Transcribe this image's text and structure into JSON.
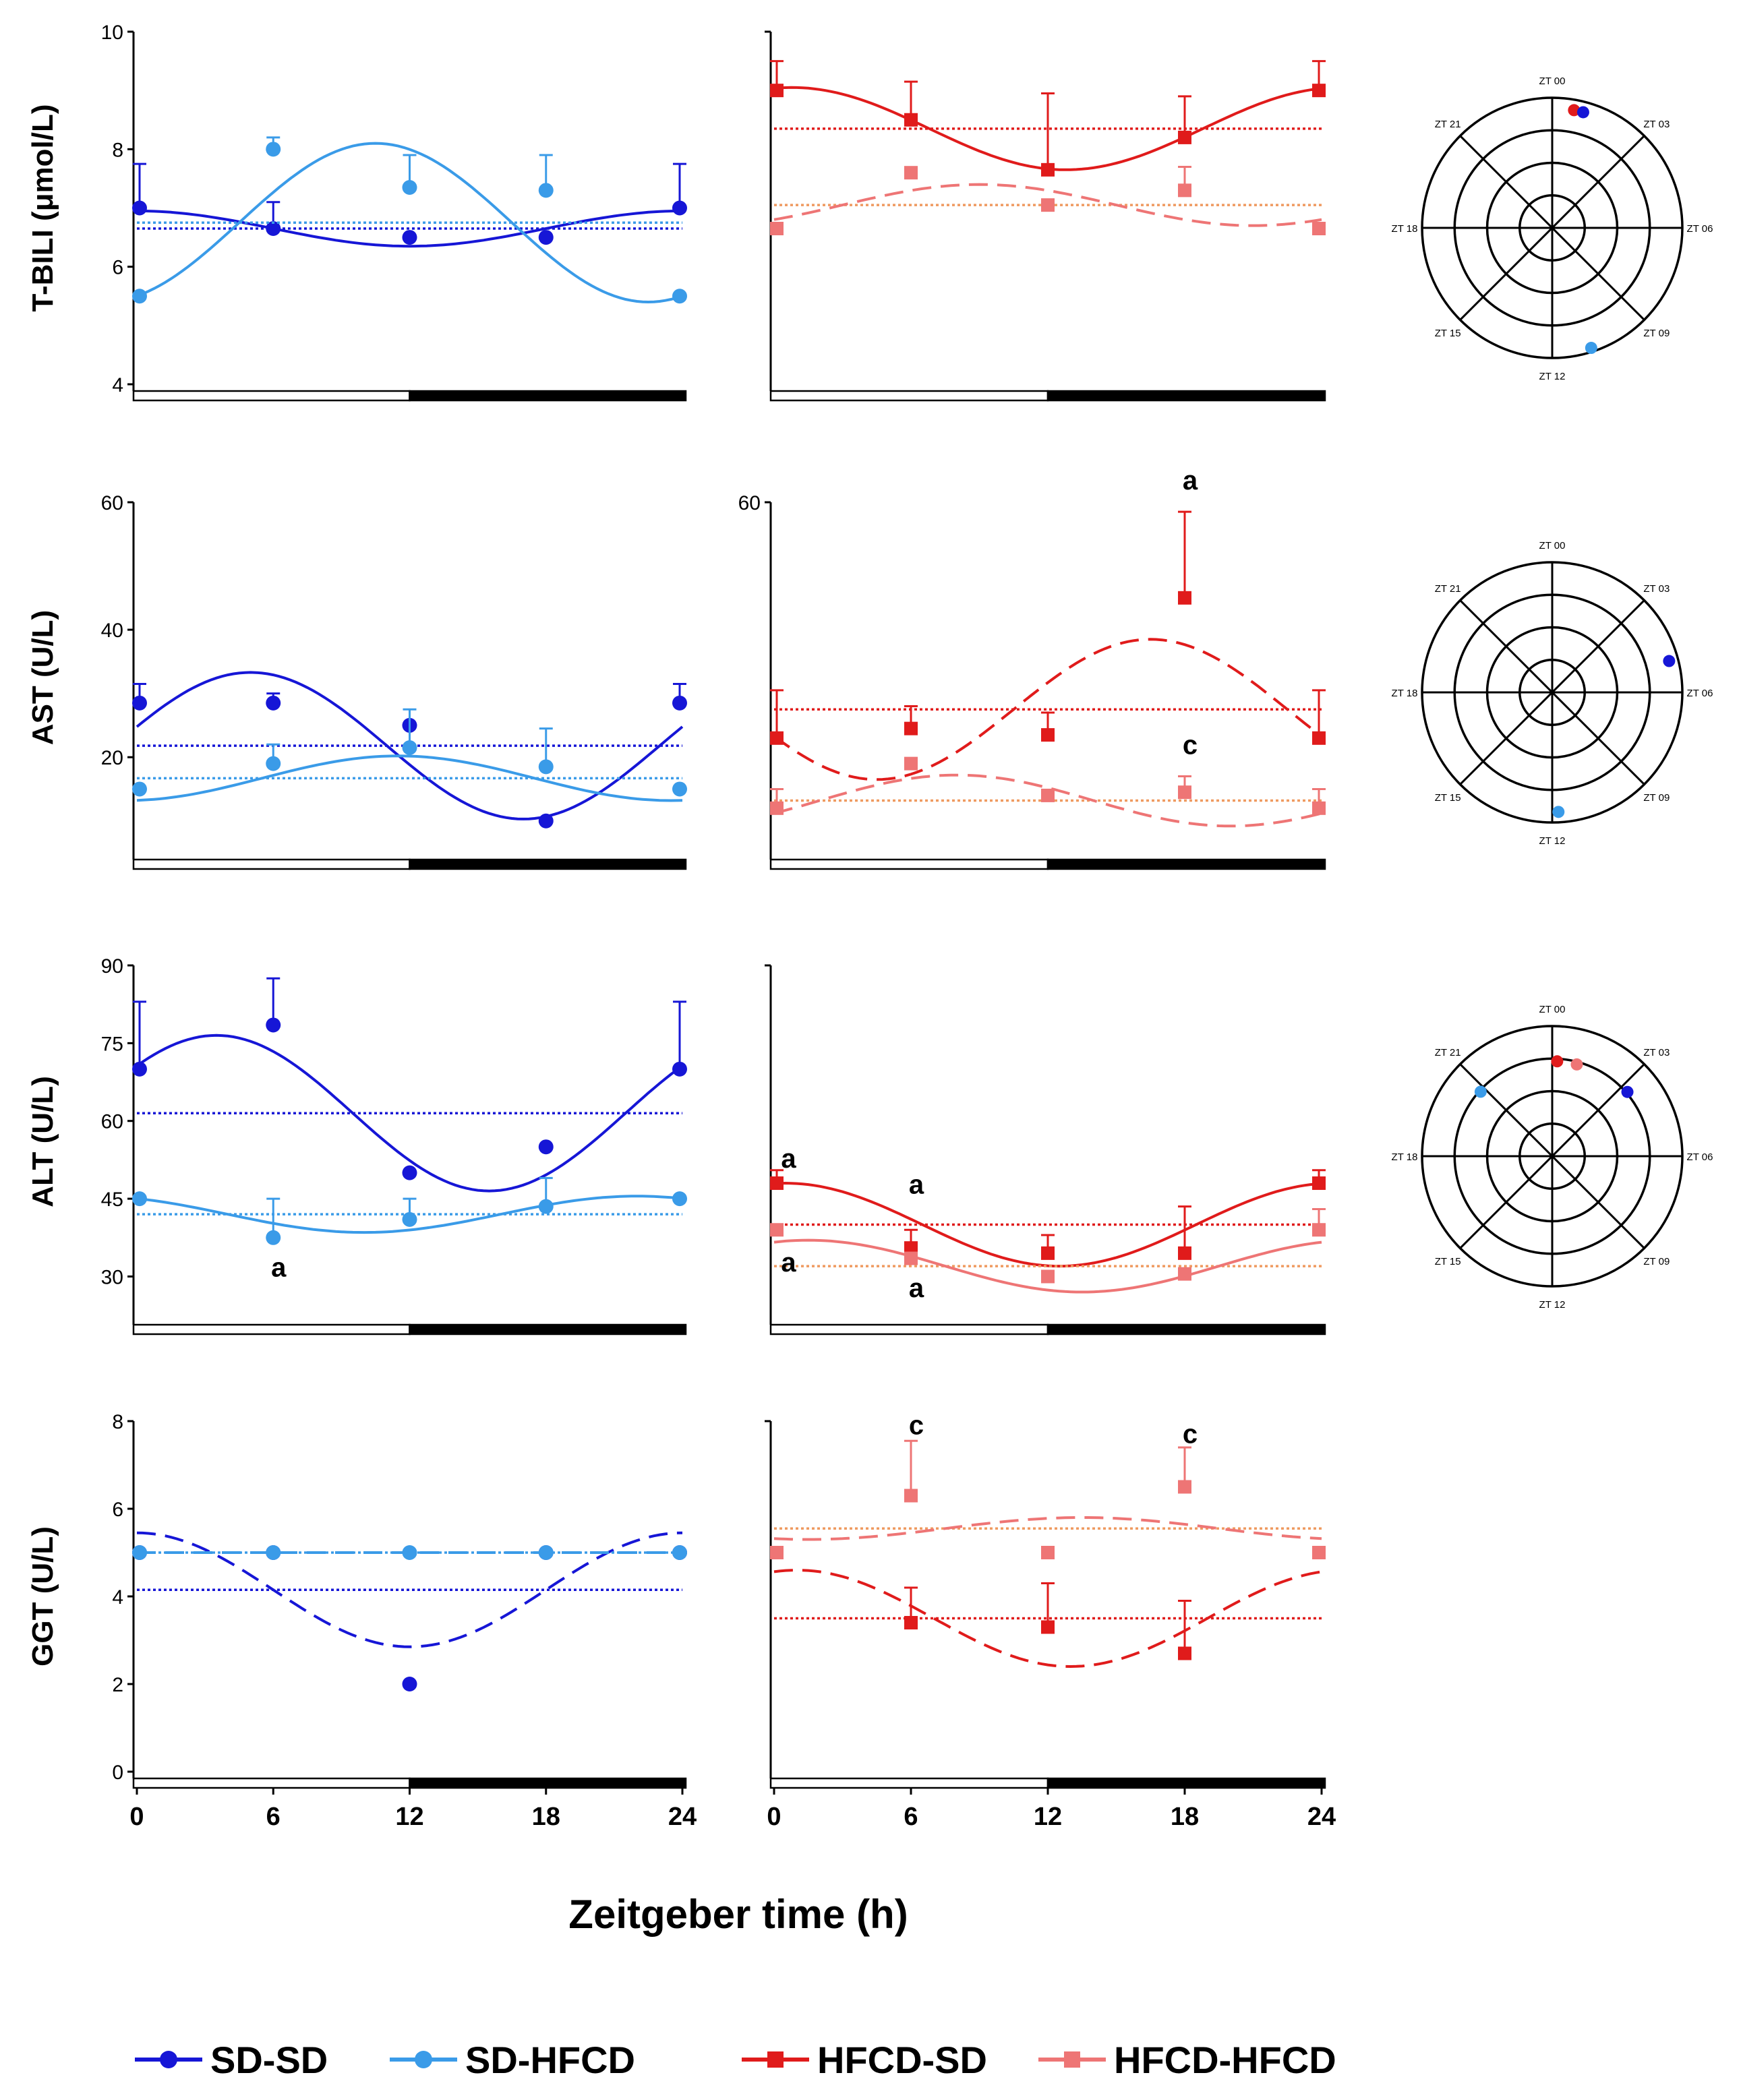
{
  "figure": {
    "x_title": "Zeitgeber time (h)",
    "x_ticks": [
      "0",
      "6",
      "12",
      "18",
      "24"
    ]
  },
  "colors": {
    "SD-SD": "#1616d6",
    "SD-HFCD": "#3a9be8",
    "HFCD-SD": "#e01b1b",
    "HFCD-HFCD": "#ee7575",
    "mesor_HFCD-HFCD": "#ef9a60"
  },
  "legend": [
    {
      "label": "SD-SD",
      "series": "SD-SD",
      "marker": "circle"
    },
    {
      "label": "SD-HFCD",
      "series": "SD-HFCD",
      "marker": "circle"
    },
    {
      "label": "HFCD-SD",
      "series": "HFCD-SD",
      "marker": "square"
    },
    {
      "label": "HFCD-HFCD",
      "series": "HFCD-HFCD",
      "marker": "square"
    }
  ],
  "polar_labels": [
    "ZT 00",
    "ZT 03",
    "ZT 06",
    "ZT 09",
    "ZT 12",
    "ZT 15",
    "ZT 18",
    "ZT 21"
  ],
  "chart_data": [
    {
      "type": "line",
      "row": 0,
      "panel": "SD",
      "ylabel": "T-BILI (μmol/L)",
      "ylim": [
        4,
        10
      ],
      "yticks": [
        "4",
        "6",
        "8",
        "10"
      ],
      "xlim": [
        0,
        24
      ],
      "series": [
        {
          "name": "SD-SD",
          "x": [
            0,
            6,
            12,
            18,
            24
          ],
          "y": [
            7.0,
            6.65,
            6.5,
            6.5,
            7.0
          ],
          "err": [
            0.75,
            0.45,
            0,
            0,
            0.75
          ],
          "mesor": 6.65,
          "amp": 0.3,
          "peak": 0,
          "dashed": false
        },
        {
          "name": "SD-HFCD",
          "x": [
            0,
            6,
            12,
            18,
            24
          ],
          "y": [
            5.5,
            8.0,
            7.35,
            7.3,
            5.5
          ],
          "err": [
            0,
            0.2,
            0.55,
            0.6,
            0
          ],
          "mesor": 6.75,
          "amp": 1.35,
          "peak": 10.5,
          "dashed": false
        }
      ],
      "annotations": []
    },
    {
      "type": "line",
      "row": 0,
      "panel": "HFCD",
      "ylabel": "",
      "ylim": [
        4,
        10
      ],
      "yticks": [],
      "xlim": [
        0,
        24
      ],
      "series": [
        {
          "name": "HFCD-SD",
          "x": [
            0,
            6,
            12,
            18,
            24
          ],
          "y": [
            9.0,
            8.5,
            7.65,
            8.2,
            9.0
          ],
          "err": [
            0.5,
            0.65,
            1.3,
            0.7,
            0.5
          ],
          "mesor": 8.35,
          "amp": 0.7,
          "peak": 0.8,
          "dashed": false
        },
        {
          "name": "HFCD-HFCD",
          "x": [
            0,
            6,
            12,
            18,
            24
          ],
          "y": [
            6.65,
            7.6,
            7.05,
            7.3,
            6.65
          ],
          "err": [
            0,
            0,
            0,
            0.4,
            0
          ],
          "mesor": 7.05,
          "amp": 0.35,
          "peak": 9.0,
          "dashed": true
        }
      ],
      "annotations": []
    },
    {
      "type": "line",
      "row": 1,
      "panel": "SD",
      "ylabel": "AST (U/L)",
      "ylim": [
        5,
        60
      ],
      "yticks": [
        "20",
        "40",
        "60"
      ],
      "xlim": [
        0,
        24
      ],
      "series": [
        {
          "name": "SD-SD",
          "x": [
            0,
            6,
            12,
            18,
            24
          ],
          "y": [
            28.5,
            28.5,
            25.0,
            10.0,
            28.5
          ],
          "err": [
            3.0,
            1.5,
            0,
            0,
            3.0
          ],
          "mesor": 21.8,
          "amp": 11.5,
          "peak": 5.0,
          "dashed": false
        },
        {
          "name": "SD-HFCD",
          "x": [
            0,
            6,
            12,
            18,
            24
          ],
          "y": [
            15.0,
            19.0,
            21.5,
            18.5,
            15.0
          ],
          "err": [
            0,
            3.0,
            6.0,
            6.0,
            0
          ],
          "mesor": 16.7,
          "amp": 3.5,
          "peak": 11.5,
          "dashed": false
        }
      ],
      "annotations": []
    },
    {
      "type": "line",
      "row": 1,
      "panel": "HFCD",
      "ylabel": "",
      "ylim": [
        5,
        60
      ],
      "yticks": [
        "60"
      ],
      "xlim": [
        0,
        24
      ],
      "series": [
        {
          "name": "HFCD-SD",
          "x": [
            0,
            6,
            12,
            18,
            24
          ],
          "y": [
            23.0,
            24.5,
            23.5,
            45.0,
            23.0
          ],
          "err": [
            7.5,
            3.5,
            3.5,
            13.5,
            7.5
          ],
          "mesor": 27.5,
          "amp": 11.0,
          "peak": 16.5,
          "dashed": true
        },
        {
          "name": "HFCD-HFCD",
          "x": [
            0,
            6,
            12,
            18,
            24
          ],
          "y": [
            12.0,
            19.0,
            14.0,
            14.5,
            12.0
          ],
          "err": [
            3.0,
            0,
            0,
            2.5,
            3.0
          ],
          "mesor": 13.2,
          "amp": 4.0,
          "peak": 8.0,
          "dashed": true
        }
      ],
      "annotations": [
        {
          "text": "a",
          "x": 18,
          "y": 62
        },
        {
          "text": "c",
          "x": 18,
          "y": 20.5
        }
      ]
    },
    {
      "type": "line",
      "row": 2,
      "panel": "SD",
      "ylabel": "ALT (U/L)",
      "ylim": [
        22,
        90
      ],
      "yticks": [
        "30",
        "45",
        "60",
        "75",
        "90"
      ],
      "xlim": [
        0,
        24
      ],
      "series": [
        {
          "name": "SD-SD",
          "x": [
            0,
            6,
            12,
            18,
            24
          ],
          "y": [
            70.0,
            78.5,
            50.0,
            55.0,
            70.0
          ],
          "err": [
            13.0,
            9.0,
            0,
            0,
            13.0
          ],
          "mesor": 61.5,
          "amp": 15.0,
          "peak": 3.5,
          "dashed": false
        },
        {
          "name": "SD-HFCD",
          "x": [
            0,
            6,
            12,
            18,
            24
          ],
          "y": [
            45.0,
            37.5,
            41.0,
            43.5,
            45.0
          ],
          "err": [
            0,
            7.5,
            4.0,
            5.5,
            0
          ],
          "mesor": 42.0,
          "amp": 3.5,
          "peak": 22.0,
          "dashed": false
        }
      ],
      "annotations": [
        {
          "text": "a",
          "x": 6,
          "y": 30
        }
      ]
    },
    {
      "type": "line",
      "row": 2,
      "panel": "HFCD",
      "ylabel": "",
      "ylim": [
        22,
        90
      ],
      "yticks": [],
      "xlim": [
        0,
        24
      ],
      "series": [
        {
          "name": "HFCD-SD",
          "x": [
            0,
            6,
            12,
            18,
            24
          ],
          "y": [
            48.0,
            35.5,
            34.5,
            34.5,
            48.0
          ],
          "err": [
            2.5,
            3.5,
            3.5,
            9.0,
            2.5
          ],
          "mesor": 40.0,
          "amp": 8.0,
          "peak": 0.5,
          "dashed": false
        },
        {
          "name": "HFCD-HFCD",
          "x": [
            0,
            6,
            12,
            18,
            24
          ],
          "y": [
            39.0,
            33.5,
            30.0,
            30.5,
            39.0
          ],
          "err": [
            0,
            0,
            0,
            0,
            4.0
          ],
          "mesor": 32.0,
          "amp": 5.0,
          "peak": 1.5,
          "dashed": false
        }
      ],
      "annotations": [
        {
          "text": "a",
          "x": 0.4,
          "y": 51
        },
        {
          "text": "a",
          "x": 6,
          "y": 46
        },
        {
          "text": "a",
          "x": 0.4,
          "y": 31
        },
        {
          "text": "a",
          "x": 6,
          "y": 26
        }
      ]
    },
    {
      "type": "line",
      "row": 3,
      "panel": "SD",
      "ylabel": "GGT (U/L)",
      "ylim": [
        0,
        8
      ],
      "yticks": [
        "0",
        "2",
        "4",
        "6",
        "8"
      ],
      "xlim": [
        0,
        24
      ],
      "series": [
        {
          "name": "SD-SD",
          "x": [
            0,
            6,
            12,
            18,
            24
          ],
          "y": [
            5.0,
            5.0,
            2.0,
            5.0,
            5.0
          ],
          "err": [
            0,
            0,
            0,
            0,
            0
          ],
          "mesor": 4.15,
          "amp": 1.3,
          "peak": 0,
          "dashed": true
        },
        {
          "name": "SD-HFCD",
          "x": [
            0,
            6,
            12,
            18,
            24
          ],
          "y": [
            5.0,
            5.0,
            5.0,
            5.0,
            5.0
          ],
          "err": [
            0,
            0,
            0,
            0,
            0
          ],
          "mesor": 5.0,
          "amp": 0,
          "peak": 0,
          "dashed": true
        }
      ],
      "annotations": []
    },
    {
      "type": "line",
      "row": 3,
      "panel": "HFCD",
      "ylabel": "",
      "ylim": [
        0,
        8
      ],
      "yticks": [],
      "xlim": [
        0,
        24
      ],
      "series": [
        {
          "name": "HFCD-SD",
          "x": [
            0,
            6,
            12,
            18,
            24
          ],
          "y": [
            5.0,
            3.4,
            3.3,
            2.7,
            5.0
          ],
          "err": [
            0,
            0.8,
            1.0,
            1.2,
            0
          ],
          "mesor": 3.5,
          "amp": 1.1,
          "peak": 1.0,
          "dashed": true
        },
        {
          "name": "HFCD-HFCD",
          "x": [
            0,
            6,
            12,
            18,
            24
          ],
          "y": [
            5.0,
            6.3,
            5.0,
            6.5,
            5.0
          ],
          "err": [
            0,
            1.25,
            0,
            0.9,
            0
          ],
          "mesor": 5.55,
          "amp": 0.25,
          "peak": 13.5,
          "dashed": true
        }
      ],
      "annotations": [
        {
          "text": "c",
          "x": 6,
          "y": 7.7
        },
        {
          "text": "c",
          "x": 18,
          "y": 7.5
        }
      ]
    },
    {
      "type": "polar",
      "row": 0,
      "points": [
        {
          "series": "HFCD-SD",
          "zt": 0.7,
          "r": 0.92
        },
        {
          "series": "SD-SD",
          "zt": 1.0,
          "r": 0.92
        },
        {
          "series": "SD-HFCD",
          "zt": 10.8,
          "r": 0.97
        }
      ]
    },
    {
      "type": "polar",
      "row": 1,
      "points": [
        {
          "series": "SD-SD",
          "zt": 5.0,
          "r": 0.93
        },
        {
          "series": "SD-HFCD",
          "zt": 11.8,
          "r": 0.92
        }
      ]
    },
    {
      "type": "polar",
      "row": 2,
      "points": [
        {
          "series": "HFCD-SD",
          "zt": 0.2,
          "r": 0.73
        },
        {
          "series": "HFCD-HFCD",
          "zt": 1.0,
          "r": 0.73
        },
        {
          "series": "SD-SD",
          "zt": 3.3,
          "r": 0.76
        },
        {
          "series": "SD-HFCD",
          "zt": 20.8,
          "r": 0.74
        }
      ]
    }
  ]
}
